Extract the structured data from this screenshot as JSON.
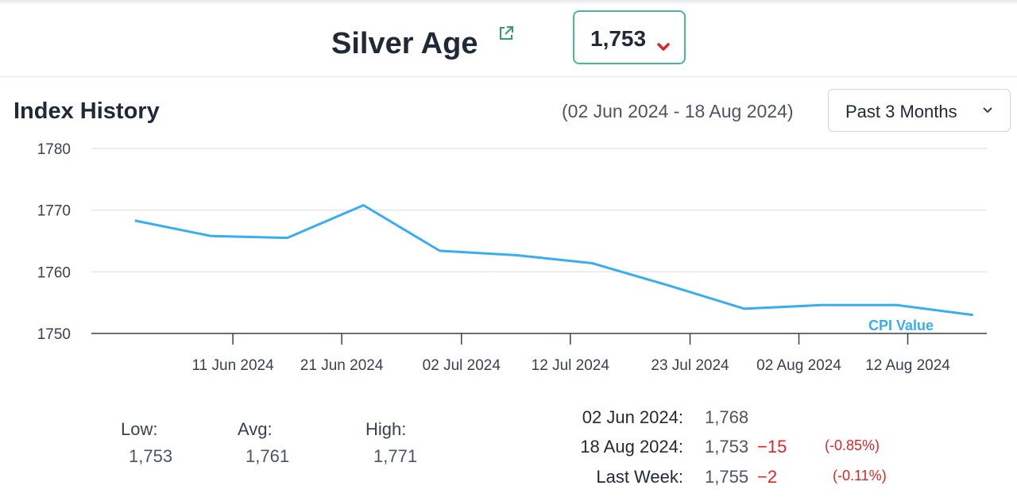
{
  "header": {
    "title": "Silver Age",
    "index_value": "1,753"
  },
  "section": {
    "title": "Index History",
    "date_range": "(02 Jun 2024 - 18 Aug 2024)",
    "period_label": "Past 3 Months"
  },
  "colors": {
    "line": "#38aef0",
    "badge_border": "#4ab88e",
    "negative": "#dc2626"
  },
  "chart_data": {
    "type": "line",
    "title": "",
    "xlabel": "",
    "ylabel": "",
    "ylim": [
      1750,
      1780
    ],
    "y_ticks": [
      "1750",
      "1760",
      "1770",
      "1780"
    ],
    "x_ticks": [
      "11 Jun 2024",
      "21 Jun 2024",
      "02 Jul 2024",
      "12 Jul 2024",
      "23 Jul 2024",
      "02 Aug 2024",
      "12 Aug 2024"
    ],
    "grid": true,
    "legend": "bottom-right",
    "series": [
      {
        "name": "CPI Value",
        "x": [
          "2024-06-02",
          "2024-06-09",
          "2024-06-16",
          "2024-06-23",
          "2024-06-30",
          "2024-07-07",
          "2024-07-14",
          "2024-07-21",
          "2024-07-28",
          "2024-08-04",
          "2024-08-11",
          "2024-08-18"
        ],
        "values": [
          1768.3,
          1765.8,
          1765.5,
          1770.8,
          1763.4,
          1762.7,
          1761.4,
          1757.8,
          1754.0,
          1754.6,
          1754.6,
          1753.0
        ]
      }
    ]
  },
  "stats": {
    "low_label": "Low:",
    "low_value": "1,753",
    "avg_label": "Avg:",
    "avg_value": "1,761",
    "high_label": "High:",
    "high_value": "1,771"
  },
  "comparison": [
    {
      "label": "02 Jun 2024:",
      "value": "1,768",
      "change": "",
      "pct": ""
    },
    {
      "label": "18 Aug 2024:",
      "value": "1,753",
      "change": "−15",
      "pct": "(-0.85%)"
    },
    {
      "label": "Last Week:",
      "value": "1,755",
      "change": "−2",
      "pct": "(-0.11%)"
    }
  ]
}
